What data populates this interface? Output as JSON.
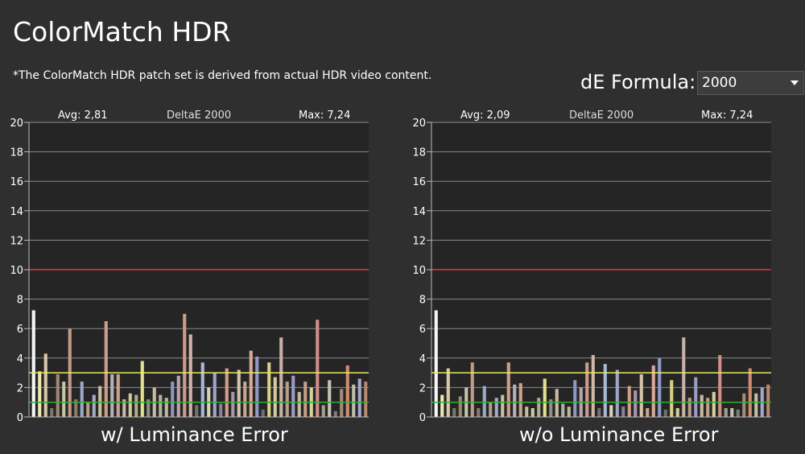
{
  "page": {
    "title": "ColorMatch HDR",
    "note": "*The ColorMatch HDR patch set is derived from actual HDR video content.",
    "formula_label": "dE Formula:",
    "formula_value": "2000"
  },
  "colors": {
    "background": "#2f2f2f",
    "plot_background": "#252525",
    "grid": "#8a8a8a",
    "threshold_high": "#e03a3a",
    "threshold_mid": "#e8e860",
    "threshold_low": "#2fb02f"
  },
  "chart_data": [
    {
      "type": "bar",
      "caption": "w/ Luminance Error",
      "avg_label": "Avg: 2,81",
      "center_label": "DeltaE 2000",
      "max_label": "Max: 7,24",
      "ylim": [
        0,
        20
      ],
      "yticks": [
        0,
        2,
        4,
        6,
        8,
        10,
        12,
        14,
        16,
        18,
        20
      ],
      "reference_lines": [
        10,
        3,
        1
      ],
      "values": [
        7.24,
        3.1,
        4.3,
        0.6,
        2.9,
        2.4,
        6.0,
        1.2,
        2.4,
        1.0,
        1.5,
        2.1,
        6.5,
        2.9,
        2.9,
        1.2,
        1.6,
        1.5,
        3.8,
        1.2,
        2.0,
        1.5,
        1.3,
        2.4,
        2.8,
        7.0,
        5.6,
        0.8,
        3.7,
        2.0,
        3.0,
        0.9,
        3.3,
        1.7,
        3.2,
        2.4,
        4.5,
        4.1,
        0.5,
        3.7,
        2.7,
        5.4,
        2.4,
        2.8,
        1.7,
        2.4,
        2.0,
        6.6,
        0.8,
        2.5,
        0.4,
        1.9,
        3.5,
        2.2,
        2.6,
        2.4
      ],
      "bar_colors": [
        "#f5f5f5",
        "#ece9b0",
        "#d8c7a8",
        "#7a756a",
        "#9e8a72",
        "#c6c4a8",
        "#c39a86",
        "#8d7a6a",
        "#9ba8c6",
        "#b89c86",
        "#a2aac4",
        "#c9c0a2",
        "#d09e88",
        "#b8b0b8",
        "#c9a38e",
        "#c7b8a6",
        "#cfc9a0",
        "#b2aa8a",
        "#e4df8c",
        "#8f8f84",
        "#cab9a2",
        "#a9b69f",
        "#c2b79b",
        "#8f97c0",
        "#bba2b0",
        "#d09a8a",
        "#cfb6a7",
        "#797171",
        "#a9b7d8",
        "#d6d2b5",
        "#9ea5c9",
        "#8b7f9c",
        "#d29e88",
        "#a895b2",
        "#d2c4a8",
        "#c9a48e",
        "#d8a99a",
        "#8f9ac7",
        "#6e6e6e",
        "#d8d088",
        "#d6ca9c",
        "#c7b1a8",
        "#b79f8e",
        "#9d99c4",
        "#c7b99e",
        "#c59e86",
        "#d5d09b",
        "#d08e88",
        "#a69e8a",
        "#c4c3b5",
        "#7d7d7d",
        "#a58b79",
        "#cf8c72",
        "#bfbfa8",
        "#a5a8cc",
        "#b5886f"
      ]
    },
    {
      "type": "bar",
      "caption": "w/o Luminance Error",
      "avg_label": "Avg: 2,09",
      "center_label": "DeltaE 2000",
      "max_label": "Max: 7,24",
      "ylim": [
        0,
        20
      ],
      "yticks": [
        0,
        2,
        4,
        6,
        8,
        10,
        12,
        14,
        16,
        18,
        20
      ],
      "reference_lines": [
        10,
        3,
        1
      ],
      "values": [
        7.24,
        1.5,
        3.3,
        0.6,
        1.4,
        2.0,
        3.7,
        0.6,
        2.1,
        1.0,
        1.3,
        1.5,
        3.7,
        2.2,
        2.3,
        0.7,
        0.6,
        1.3,
        2.6,
        1.2,
        1.9,
        0.9,
        0.7,
        2.5,
        2.0,
        3.7,
        4.2,
        0.6,
        3.6,
        0.8,
        3.2,
        0.7,
        2.1,
        1.8,
        2.9,
        0.6,
        3.5,
        4.0,
        0.5,
        2.5,
        0.6,
        5.4,
        1.3,
        2.7,
        1.5,
        1.3,
        1.7,
        4.2,
        0.6,
        0.6,
        0.5,
        1.6,
        3.3,
        1.6,
        2.0,
        2.2
      ],
      "bar_colors": [
        "#f5f5f5",
        "#ece9b0",
        "#d8c7a8",
        "#7a756a",
        "#9e8a72",
        "#c6c4a8",
        "#c39a86",
        "#8d7a6a",
        "#9ba8c6",
        "#b89c86",
        "#a2aac4",
        "#c9c0a2",
        "#d09e88",
        "#b8b0b8",
        "#c9a38e",
        "#c7b8a6",
        "#cfc9a0",
        "#b2aa8a",
        "#e4df8c",
        "#8f8f84",
        "#cab9a2",
        "#a9b69f",
        "#c2b79b",
        "#8f97c0",
        "#bba2b0",
        "#d09a8a",
        "#cfb6a7",
        "#797171",
        "#a9b7d8",
        "#d6d2b5",
        "#9ea5c9",
        "#8b7f9c",
        "#d29e88",
        "#a895b2",
        "#d2c4a8",
        "#c9a48e",
        "#d8a99a",
        "#8f9ac7",
        "#6e6e6e",
        "#d8d088",
        "#d6ca9c",
        "#c7b1a8",
        "#b79f8e",
        "#9d99c4",
        "#c7b99e",
        "#c59e86",
        "#d5d09b",
        "#d08e88",
        "#a69e8a",
        "#c4c3b5",
        "#7d7d7d",
        "#a58b79",
        "#cf8c72",
        "#bfbfa8",
        "#a5a8cc",
        "#b5886f"
      ]
    }
  ]
}
